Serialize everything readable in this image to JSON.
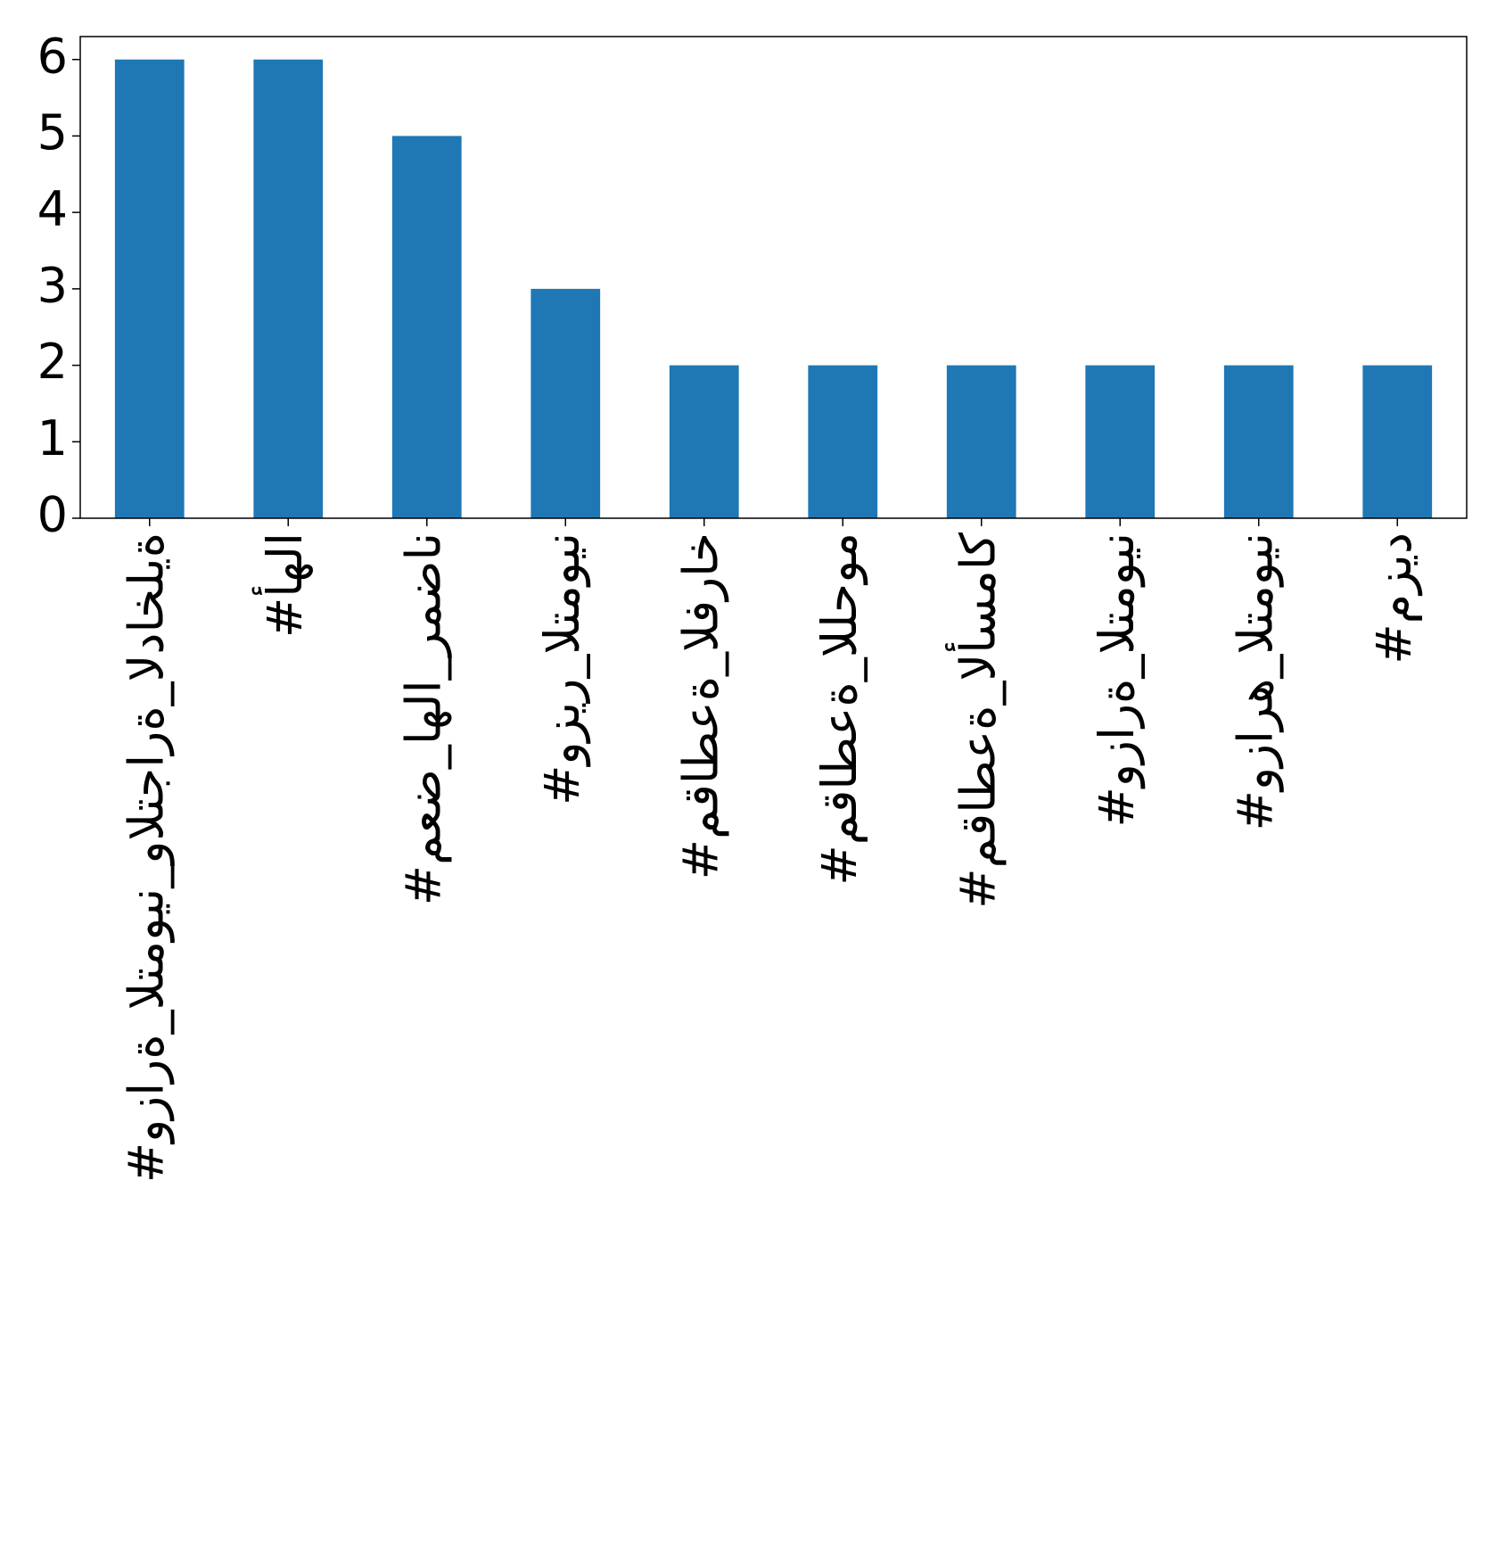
{
  "chart_data": {
    "type": "bar",
    "categories": [
      "#وزارة_التموين_والتجارة_الداخلية",
      "#أهلا",
      "#معض_اهلا_رمضان",
      "#وزير_التموين",
      "#مقاطعة_الفراخ",
      "#مقاطعة_اللحوم",
      "#مقاطعة_الأسماك",
      "#وزارة_التموين",
      "#وزاره_التموين",
      "#مزيد"
    ],
    "values": [
      6,
      6,
      5,
      3,
      2,
      2,
      2,
      2,
      2,
      2
    ],
    "color": "#1f77b4",
    "ylim": [
      0,
      6.3
    ],
    "yticks": [
      0,
      1,
      2,
      3,
      4,
      5,
      6
    ],
    "grid": false
  }
}
